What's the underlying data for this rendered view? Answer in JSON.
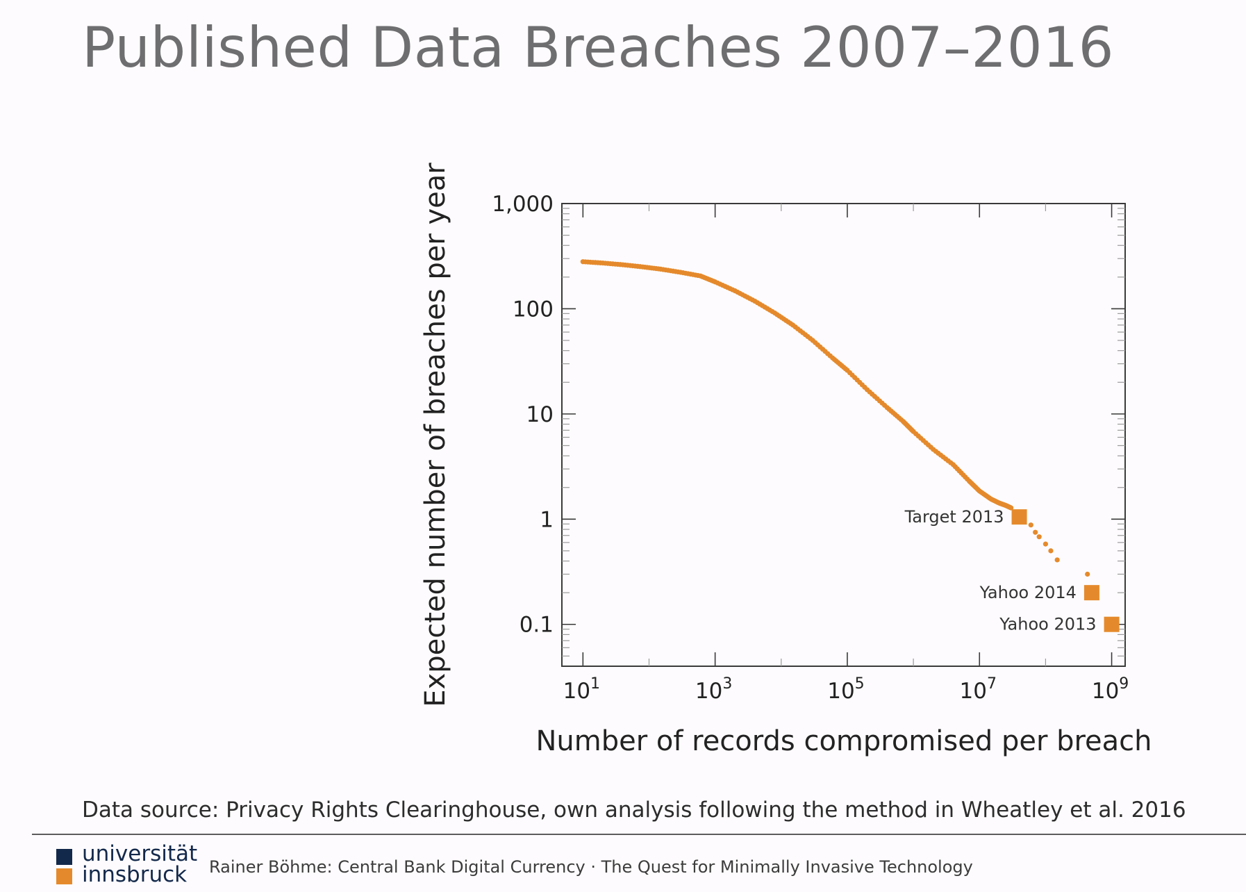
{
  "slide": {
    "title": "Published Data Breaches 2007–2016",
    "source_note": "Data source: Privacy Rights Clearinghouse, own analysis following the method in Wheatley et al. 2016",
    "logo": {
      "line1": "universität",
      "line2": "innsbruck"
    },
    "footer": "Rainer Böhme: Central Bank Digital Currency · The Quest for Minimally Invasive Technology"
  },
  "colors": {
    "accent": "#e58a2c",
    "title_gray": "#6e6e70",
    "logo_navy": "#13294b"
  },
  "chart_data": {
    "type": "scatter",
    "xlabel": "Number of records compromised per breach",
    "ylabel": "Expected number of breaches per year",
    "x_scale": "log",
    "y_scale": "log",
    "xlim": [
      4.8,
      1600000000.0
    ],
    "ylim": [
      0.04,
      1000
    ],
    "x_ticks": [
      {
        "value": 10,
        "base": "10",
        "exp": "1"
      },
      {
        "value": 1000,
        "base": "10",
        "exp": "3"
      },
      {
        "value": 100000,
        "base": "10",
        "exp": "5"
      },
      {
        "value": 10000000,
        "base": "10",
        "exp": "7"
      },
      {
        "value": 1000000000,
        "base": "10",
        "exp": "9"
      }
    ],
    "y_ticks": [
      {
        "value": 1000,
        "label": "1,000"
      },
      {
        "value": 100,
        "label": "100"
      },
      {
        "value": 10,
        "label": "10"
      },
      {
        "value": 1,
        "label": "1"
      },
      {
        "value": 0.1,
        "label": "0.1"
      }
    ],
    "grid": false,
    "series": [
      {
        "marker": "dot",
        "points": [
          [
            10,
            280
          ],
          [
            20,
            272
          ],
          [
            40,
            262
          ],
          [
            80,
            250
          ],
          [
            150,
            238
          ],
          [
            300,
            222
          ],
          [
            600,
            205
          ],
          [
            1000,
            180
          ],
          [
            2000,
            148
          ],
          [
            4000,
            118
          ],
          [
            8000,
            91
          ],
          [
            15000,
            70
          ],
          [
            30000,
            50
          ],
          [
            60000,
            34
          ],
          [
            100000,
            26
          ],
          [
            200000,
            17
          ],
          [
            400000,
            11.5
          ],
          [
            700000,
            8.5
          ],
          [
            1000000,
            6.8
          ],
          [
            2000000,
            4.6
          ],
          [
            4000000,
            3.3
          ],
          [
            7000000,
            2.3
          ],
          [
            10000000,
            1.85
          ],
          [
            15000000,
            1.55
          ],
          [
            20000000,
            1.42
          ],
          [
            25000000,
            1.35
          ],
          [
            30000000,
            1.28
          ],
          [
            60000000,
            0.88
          ],
          [
            70000000,
            0.75
          ],
          [
            80000000,
            0.68
          ],
          [
            100000000,
            0.58
          ],
          [
            120000000,
            0.5
          ],
          [
            150000000,
            0.41
          ],
          [
            430000000,
            0.3
          ]
        ]
      }
    ],
    "highlights": [
      {
        "label": "Target 2013",
        "x": 40000000,
        "y": 1.05
      },
      {
        "label": "Yahoo 2014",
        "x": 500000000,
        "y": 0.2
      },
      {
        "label": "Yahoo 2013",
        "x": 1000000000,
        "y": 0.1
      }
    ]
  }
}
